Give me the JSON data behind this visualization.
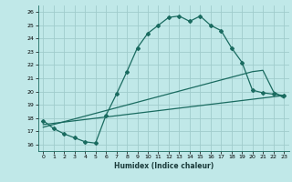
{
  "xlabel": "Humidex (Indice chaleur)",
  "bg_color": "#c0e8e8",
  "grid_color": "#a0cccc",
  "line_color": "#1a6b60",
  "xlim": [
    -0.5,
    23.5
  ],
  "ylim": [
    15.5,
    26.5
  ],
  "xticks": [
    0,
    1,
    2,
    3,
    4,
    5,
    6,
    7,
    8,
    9,
    10,
    11,
    12,
    13,
    14,
    15,
    16,
    17,
    18,
    19,
    20,
    21,
    22,
    23
  ],
  "yticks": [
    16,
    17,
    18,
    19,
    20,
    21,
    22,
    23,
    24,
    25,
    26
  ],
  "curve1_x": [
    0,
    1,
    2,
    3,
    4,
    5,
    6,
    7,
    8,
    9,
    10,
    11,
    12,
    13,
    14,
    15,
    16,
    17,
    18,
    19,
    20,
    21,
    22,
    23
  ],
  "curve1_y": [
    17.8,
    17.2,
    16.8,
    16.5,
    16.2,
    16.1,
    18.2,
    19.8,
    21.5,
    23.3,
    24.4,
    25.0,
    25.6,
    25.7,
    25.3,
    25.7,
    25.0,
    24.6,
    23.3,
    22.2,
    20.1,
    19.9,
    19.8,
    19.7
  ],
  "trend1_x": [
    0,
    23
  ],
  "trend1_y": [
    17.5,
    19.7
  ],
  "trend2_x": [
    0,
    20,
    21,
    22,
    23
  ],
  "trend2_y": [
    17.3,
    21.5,
    21.6,
    20.0,
    19.5
  ]
}
